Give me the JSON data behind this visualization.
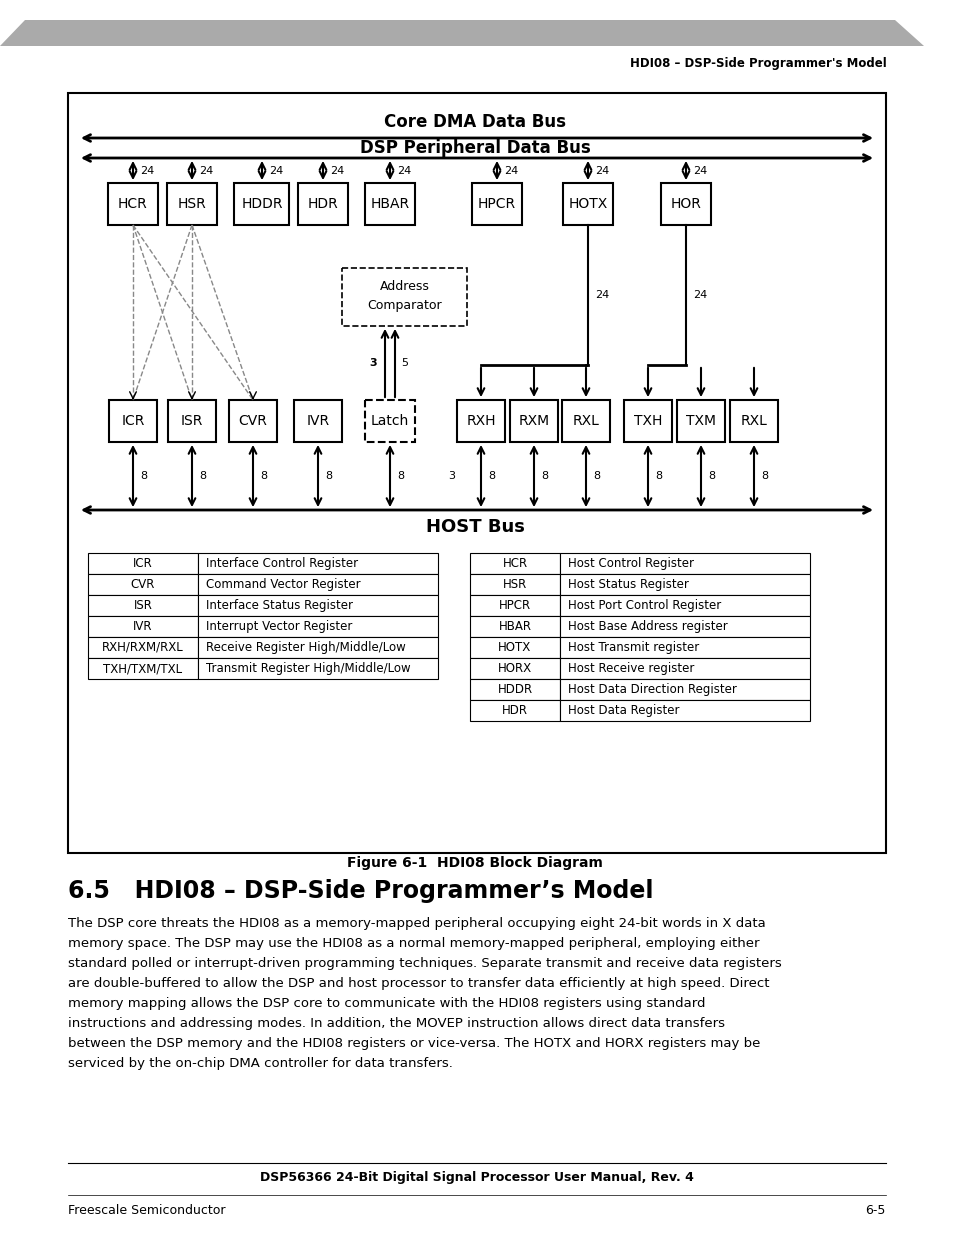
{
  "page_title_right": "HDI08 – DSP-Side Programmer's Model",
  "header_bar_color": "#aaaaaa",
  "fig_caption": "Figure 6-1  HDI08 Block Diagram",
  "section_title": "6.5   HDI08 – DSP-Side Programmer’s Model",
  "body_text": "The DSP core threats the HDI08 as a memory-mapped peripheral occupying eight 24-bit words in X data\nmemory space. The DSP may use the HDI08 as a normal memory-mapped peripheral, employing either\nstandard polled or interrupt-driven programming techniques. Separate transmit and receive data registers\nare double-buffered to allow the DSP and host processor to transfer data efficiently at high speed. Direct\nmemory mapping allows the DSP core to communicate with the HDI08 registers using standard\ninstructions and addressing modes. In addition, the MOVEP instruction allows direct data transfers\nbetween the DSP memory and the HDI08 registers or vice-versa. The HOTX and HORX registers may be\nserviced by the on-chip DMA controller for data transfers.",
  "footer_center": "DSP56366 24-Bit Digital Signal Processor User Manual, Rev. 4",
  "footer_left": "Freescale Semiconductor",
  "footer_right": "6-5",
  "table_left": [
    [
      "ICR",
      "Interface Control Register"
    ],
    [
      "CVR",
      "Command Vector Register"
    ],
    [
      "ISR",
      "Interface Status Register"
    ],
    [
      "IVR",
      "Interrupt Vector Register"
    ],
    [
      "RXH/RXM/RXL",
      "Receive Register High/Middle/Low"
    ],
    [
      "TXH/TXM/TXL",
      "Transmit Register High/Middle/Low"
    ]
  ],
  "table_right": [
    [
      "HCR",
      "Host Control Register"
    ],
    [
      "HSR",
      "Host Status Register"
    ],
    [
      "HPCR",
      "Host Port Control Register"
    ],
    [
      "HBAR",
      "Host Base Address register"
    ],
    [
      "HOTX",
      "Host Transmit register"
    ],
    [
      "HORX",
      "Host Receive register"
    ],
    [
      "HDDR",
      "Host Data Direction Register"
    ],
    [
      "HDR",
      "Host Data Register"
    ]
  ]
}
